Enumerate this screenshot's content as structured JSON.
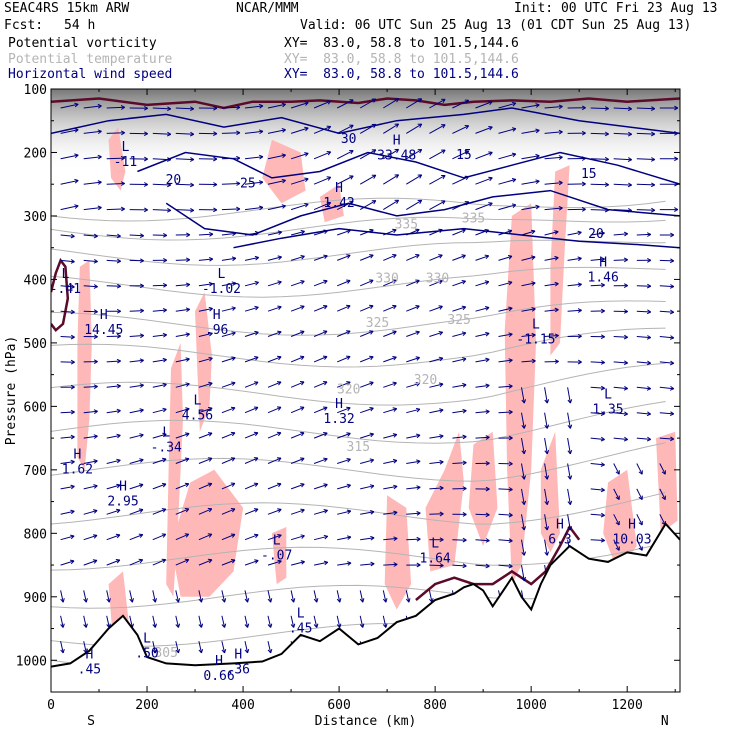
{
  "header": {
    "model": "SEAC4RS 15km ARW",
    "org": "NCAR/MMM",
    "init": "Init: 00 UTC Fri 23 Aug 13",
    "fcst_label": "Fcst:",
    "fcst_value": "54 h",
    "valid": "Valid: 06 UTC Sun 25 Aug 13 (01 CDT Sun 25 Aug 13)",
    "fields": [
      {
        "name": "Potential vorticity",
        "xy": "XY=  83.0, 58.8 to 101.5,144.6",
        "color": "#000000"
      },
      {
        "name": "Potential temperature",
        "xy": "XY=  83.0, 58.8 to 101.5,144.6",
        "color": "#b4b4b4"
      },
      {
        "name": "Horizontal wind speed",
        "xy": "XY=  83.0, 58.8 to 101.5,144.6",
        "color": "#000080"
      }
    ]
  },
  "chart_data": {
    "type": "vertical-cross-section",
    "xlabel": "Distance (km)",
    "ylabel": "Pressure (hPa)",
    "xlim": [
      0,
      1310
    ],
    "ylim": [
      1050,
      100
    ],
    "xticks": [
      0,
      200,
      400,
      600,
      800,
      1000,
      1200
    ],
    "yticks": [
      100,
      200,
      300,
      400,
      500,
      600,
      700,
      800,
      900,
      1000
    ],
    "xtick_labels": [
      "0",
      "200",
      "400",
      "600",
      "800",
      "1000",
      "1200"
    ],
    "ytick_labels": [
      "100",
      "200",
      "300",
      "400",
      "500",
      "600",
      "700",
      "800",
      "900",
      "1000"
    ],
    "endpoint_labels": [
      {
        "x": 75,
        "text": "S"
      },
      {
        "x": 1270,
        "text": "N"
      }
    ],
    "terrain": [
      [
        0,
        1010
      ],
      [
        40,
        1005
      ],
      [
        80,
        985
      ],
      [
        120,
        950
      ],
      [
        150,
        930
      ],
      [
        180,
        960
      ],
      [
        200,
        995
      ],
      [
        240,
        1005
      ],
      [
        300,
        1008
      ],
      [
        380,
        1005
      ],
      [
        440,
        1002
      ],
      [
        480,
        990
      ],
      [
        520,
        960
      ],
      [
        560,
        970
      ],
      [
        600,
        950
      ],
      [
        640,
        975
      ],
      [
        680,
        965
      ],
      [
        720,
        940
      ],
      [
        760,
        930
      ],
      [
        800,
        905
      ],
      [
        840,
        895
      ],
      [
        860,
        885
      ],
      [
        880,
        880
      ],
      [
        900,
        890
      ],
      [
        920,
        915
      ],
      [
        960,
        870
      ],
      [
        980,
        900
      ],
      [
        1000,
        920
      ],
      [
        1020,
        880
      ],
      [
        1040,
        850
      ],
      [
        1080,
        820
      ],
      [
        1120,
        840
      ],
      [
        1160,
        845
      ],
      [
        1200,
        830
      ],
      [
        1240,
        835
      ],
      [
        1280,
        785
      ],
      [
        1310,
        810
      ]
    ],
    "theta_contours": [
      {
        "label": "305",
        "label_x": 240,
        "label_p": 995
      },
      {
        "label": "315",
        "label_x": 640,
        "label_p": 670
      },
      {
        "label": "320",
        "label_x": 620,
        "label_p": 580
      },
      {
        "label": "320",
        "label_x": 780,
        "label_p": 565
      },
      {
        "label": "325",
        "label_x": 680,
        "label_p": 475
      },
      {
        "label": "325",
        "label_x": 850,
        "label_p": 470
      },
      {
        "label": "330",
        "label_x": 700,
        "label_p": 405
      },
      {
        "label": "330",
        "label_x": 805,
        "label_p": 405
      },
      {
        "label": "335",
        "label_x": 740,
        "label_p": 320
      },
      {
        "label": "335",
        "label_x": 880,
        "label_p": 310
      }
    ],
    "wind_speed_labels": [
      {
        "text": "30",
        "x": 620,
        "p": 185
      },
      {
        "text": "25",
        "x": 410,
        "p": 255
      },
      {
        "text": "20",
        "x": 255,
        "p": 250
      },
      {
        "text": "15",
        "x": 860,
        "p": 210
      },
      {
        "text": "20",
        "x": 1135,
        "p": 335
      },
      {
        "text": "15",
        "x": 1120,
        "p": 240
      }
    ],
    "extrema": [
      {
        "type": "L",
        "value": "-11",
        "x": 155,
        "p": 210
      },
      {
        "type": "H",
        "value": "1.42",
        "x": 600,
        "p": 275
      },
      {
        "type": "H",
        "value": "33.48",
        "x": 720,
        "p": 200
      },
      {
        "type": "L",
        "value": "-.41",
        "x": 30,
        "p": 410
      },
      {
        "type": "L",
        "value": "-1.02",
        "x": 355,
        "p": 410
      },
      {
        "type": "H",
        "value": "14.45",
        "x": 110,
        "p": 475
      },
      {
        "type": "H",
        "value": ".96",
        "x": 345,
        "p": 475
      },
      {
        "type": "L",
        "value": "-1.15",
        "x": 1010,
        "p": 490
      },
      {
        "type": "H",
        "value": "1.46",
        "x": 1150,
        "p": 392
      },
      {
        "type": "L",
        "value": "1.35",
        "x": 1160,
        "p": 600
      },
      {
        "type": "L",
        "value": "4.56",
        "x": 305,
        "p": 610
      },
      {
        "type": "L",
        "value": "-.34",
        "x": 240,
        "p": 660
      },
      {
        "type": "H",
        "value": "1.32",
        "x": 600,
        "p": 615
      },
      {
        "type": "H",
        "value": "1.62",
        "x": 55,
        "p": 695
      },
      {
        "type": "H",
        "value": "2.95",
        "x": 150,
        "p": 745
      },
      {
        "type": "L",
        "value": "-.07",
        "x": 470,
        "p": 830
      },
      {
        "type": "L",
        "value": "1.64",
        "x": 800,
        "p": 835
      },
      {
        "type": "H",
        "value": "6.3",
        "x": 1060,
        "p": 805
      },
      {
        "type": "H",
        "value": "10.03",
        "x": 1210,
        "p": 805
      },
      {
        "type": "L",
        "value": ".45",
        "x": 520,
        "p": 945
      },
      {
        "type": "L",
        "value": ".50",
        "x": 200,
        "p": 985
      },
      {
        "type": "H",
        "value": ".45",
        "x": 80,
        "p": 1010
      },
      {
        "type": "H",
        "value": "0.66",
        "x": 350,
        "p": 1020
      },
      {
        "type": "H",
        "value": ".36",
        "x": 390,
        "p": 1010
      }
    ],
    "colors": {
      "pv_shading": "#ffb8b8",
      "pv_contour": "#5c0a2a",
      "theta": "#b4b4b4",
      "wind": "#000080",
      "terrain": "#000000"
    }
  }
}
